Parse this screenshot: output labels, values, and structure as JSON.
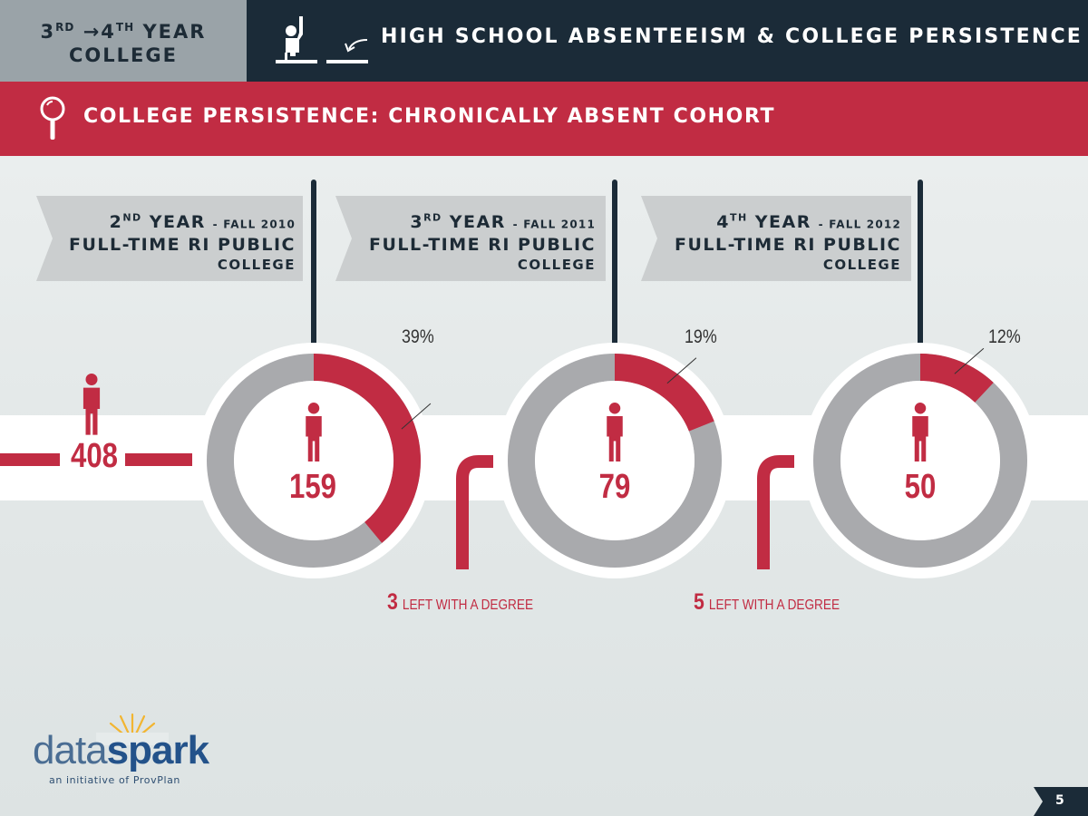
{
  "header": {
    "section_line1_a": "3",
    "section_line1_sup_a": "RD",
    "section_line1_arrow": "→",
    "section_line1_b": "4",
    "section_line1_sup_b": "TH",
    "section_line1_c": "YEAR",
    "section_line2": "COLLEGE",
    "title": "HIGH SCHOOL ABSENTEEISM & COLLEGE PERSISTENCE",
    "icons": [
      "student-raising-hand-icon",
      "down-arrow-icon"
    ]
  },
  "subtitle": "COLLEGE PERSISTENCE: CHRONICALLY ABSENT COHORT",
  "subtitle_icon": "magnifier-icon",
  "colors": {
    "red": "#c12c43",
    "navy": "#1b2b38",
    "gray_ring": "#a9aaad",
    "banner_gray": "#cbcecf"
  },
  "chart_data": {
    "type": "pie",
    "start_count": "408",
    "stages": [
      {
        "year_num": "2",
        "year_sup": "ND",
        "year_word": "YEAR",
        "term": "- FALL 2010",
        "line2": "FULL-TIME RI PUBLIC",
        "line3": "COLLEGE",
        "count": "159",
        "percent": 39,
        "percent_label": "39%"
      },
      {
        "year_num": "3",
        "year_sup": "RD",
        "year_word": "YEAR",
        "term": "- FALL 2011",
        "line2": "FULL-TIME RI PUBLIC",
        "line3": "COLLEGE",
        "count": "79",
        "percent": 19,
        "percent_label": "19%"
      },
      {
        "year_num": "4",
        "year_sup": "TH",
        "year_word": "YEAR",
        "term": "- FALL 2012",
        "line2": "FULL-TIME RI PUBLIC",
        "line3": "COLLEGE",
        "count": "50",
        "percent": 12,
        "percent_label": "12%"
      }
    ],
    "left_with_degree": [
      {
        "count": "3",
        "label": "LEFT WITH A DEGREE"
      },
      {
        "count": "5",
        "label": "LEFT WITH A DEGREE"
      }
    ]
  },
  "footer": {
    "logo_part1": "data",
    "logo_part2": "spark",
    "logo_sub": "an initiative of ProvPlan",
    "page_number": "5"
  }
}
